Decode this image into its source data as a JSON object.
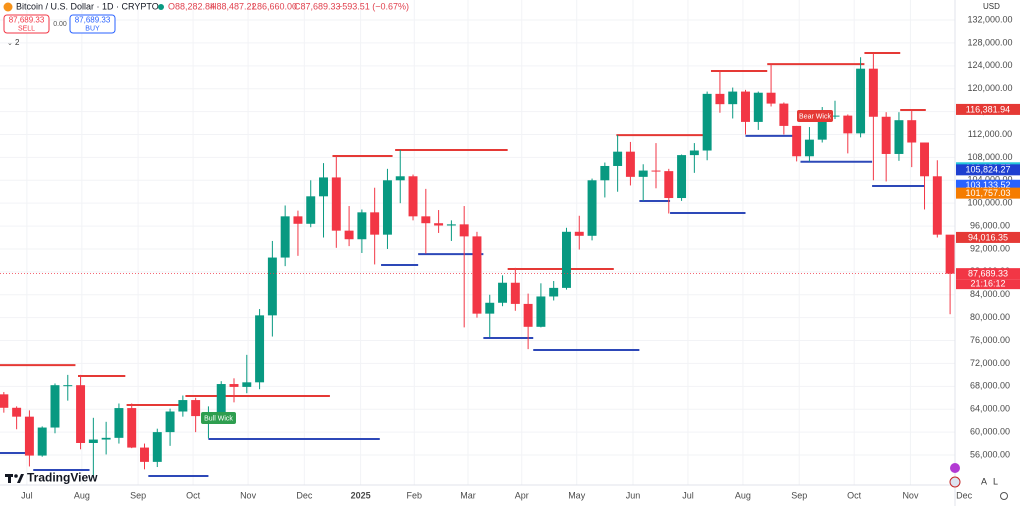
{
  "header": {
    "symbol": "Bitcoin / U.S. Dollar · 1D · CRYPTO",
    "open": "O88,282.84",
    "high": "H88,487.22",
    "low": "L86,660.00",
    "close": "C87,689.33",
    "change": "−593.51 (−0.67%)",
    "indicators": "2"
  },
  "order_panel": {
    "sell_price": "87,689.33",
    "sell": "SELL",
    "spread": "0.00",
    "buy_price": "87,689.33",
    "buy": "BUY"
  },
  "currency": "USD",
  "brand": "TradingView",
  "scale_buttons": {
    "auto": "A",
    "log": "L"
  },
  "annotations": {
    "bear": "Bear Wick",
    "bull": "Bull Wick"
  },
  "countdown": "21:16:12",
  "chart_data": {
    "type": "candlestick",
    "up_color": "#089981",
    "down_color": "#f23645",
    "open": [
      66600,
      64250,
      62700,
      55900,
      60800,
      68200,
      68200,
      58100,
      58700,
      59000,
      64200,
      57300,
      54800,
      60000,
      63600,
      65600,
      62800,
      62900,
      68400,
      67900,
      68700,
      80400,
      90500,
      97700,
      96400,
      101200,
      104500,
      95200,
      93700,
      98400,
      94500,
      104000,
      104700,
      97700,
      96500,
      96100,
      96300,
      94200,
      80700,
      82600,
      86100,
      82400,
      78400,
      83700,
      85200,
      95000,
      94300,
      104000,
      106500,
      109000,
      104600,
      105700,
      105600,
      100900,
      108400,
      109200,
      119100,
      117300,
      119500,
      114200,
      119300,
      117400,
      113500,
      108200,
      111100,
      115300,
      115300,
      112200,
      123500,
      115100,
      108600,
      114500,
      110600,
      104700,
      94500
    ],
    "high": [
      67000,
      64500,
      63800,
      61000,
      68500,
      70000,
      70000,
      62500,
      61800,
      65000,
      65000,
      58000,
      60600,
      64100,
      66400,
      66000,
      64500,
      68900,
      69400,
      73500,
      81500,
      93400,
      99600,
      98700,
      104000,
      107000,
      108300,
      99500,
      98900,
      102700,
      106000,
      109300,
      105000,
      102500,
      98800,
      97000,
      99500,
      95000,
      84000,
      87400,
      88700,
      84200,
      86000,
      86400,
      95700,
      97800,
      104300,
      107100,
      111900,
      110700,
      106800,
      110500,
      106000,
      108500,
      110500,
      119500,
      123200,
      120200,
      119800,
      119500,
      124400,
      117600,
      113500,
      113300,
      116800,
      117900,
      115500,
      125500,
      126200,
      115900,
      115900,
      116400,
      110600,
      107500,
      94000
    ],
    "low": [
      63400,
      60500,
      54000,
      55700,
      59800,
      65500,
      57000,
      52000,
      56100,
      58000,
      57200,
      53500,
      53900,
      57600,
      62700,
      60000,
      58900,
      62000,
      65200,
      66800,
      67500,
      76700,
      89000,
      90800,
      95800,
      94000,
      92200,
      92500,
      91300,
      89300,
      92000,
      100000,
      97000,
      91200,
      94800,
      93400,
      78300,
      80000,
      76600,
      82000,
      81200,
      74500,
      78300,
      83000,
      84900,
      91900,
      93500,
      101000,
      102000,
      103100,
      100400,
      102600,
      98200,
      100400,
      105300,
      107500,
      115800,
      114800,
      112000,
      112800,
      116900,
      112000,
      107300,
      107300,
      110600,
      114700,
      108700,
      111500,
      104000,
      103800,
      107400,
      106300,
      98900,
      94000,
      80600
    ],
    "close": [
      64250,
      62700,
      55900,
      60800,
      68200,
      68200,
      58100,
      58700,
      59000,
      64200,
      57300,
      54800,
      60000,
      63600,
      65600,
      62800,
      62900,
      68400,
      67900,
      68700,
      80400,
      90500,
      97700,
      96400,
      101200,
      104500,
      95200,
      93700,
      98400,
      94500,
      104000,
      104700,
      97700,
      96500,
      96100,
      96300,
      94200,
      80700,
      82600,
      86100,
      82400,
      78400,
      83700,
      85200,
      95000,
      94300,
      104000,
      106500,
      109000,
      104600,
      105700,
      105600,
      100900,
      108400,
      109200,
      119100,
      117300,
      119500,
      114200,
      119300,
      117400,
      113500,
      108200,
      111100,
      115300,
      115300,
      112200,
      123500,
      115100,
      108600,
      114500,
      110600,
      104700,
      94500,
      87689.33
    ],
    "xlim": [
      -0.3,
      75.4
    ],
    "xticks": [
      {
        "value": 1.8,
        "label": "Jul"
      },
      {
        "value": 6.1,
        "label": "Aug"
      },
      {
        "value": 10.5,
        "label": "Sep"
      },
      {
        "value": 14.8,
        "label": "Oct"
      },
      {
        "value": 19.1,
        "label": "Nov"
      },
      {
        "value": 23.5,
        "label": "Dec"
      },
      {
        "value": 27.9,
        "label": "2025"
      },
      {
        "value": 32.1,
        "label": "Feb"
      },
      {
        "value": 36.3,
        "label": "Mar"
      },
      {
        "value": 40.5,
        "label": "Apr"
      },
      {
        "value": 44.8,
        "label": "May"
      },
      {
        "value": 49.2,
        "label": "Jun"
      },
      {
        "value": 53.5,
        "label": "Jul"
      },
      {
        "value": 57.8,
        "label": "Aug"
      },
      {
        "value": 62.2,
        "label": "Sep"
      },
      {
        "value": 66.5,
        "label": "Oct"
      },
      {
        "value": 70.9,
        "label": "Nov"
      },
      {
        "value": 75.1,
        "label": "Dec"
      }
    ],
    "ylim": [
      50760,
      135500
    ],
    "yticks": [
      {
        "value": 56000,
        "label": "56,000.00"
      },
      {
        "value": 60000,
        "label": "60,000.00"
      },
      {
        "value": 64000,
        "label": "64,000.00"
      },
      {
        "value": 68000,
        "label": "68,000.00"
      },
      {
        "value": 72000,
        "label": "72,000.00"
      },
      {
        "value": 76000,
        "label": "76,000.00"
      },
      {
        "value": 80000,
        "label": "80,000.00"
      },
      {
        "value": 84000,
        "label": "84,000.00"
      },
      {
        "value": 88000,
        "label": "88,000.00"
      },
      {
        "value": 92000,
        "label": "92,000.00"
      },
      {
        "value": 96000,
        "label": "96,000.00"
      },
      {
        "value": 100000,
        "label": "100,000.00"
      },
      {
        "value": 104000,
        "label": "104,000.00"
      },
      {
        "value": 108000,
        "label": "108,000.00"
      },
      {
        "value": 112000,
        "label": "112,000.00"
      },
      {
        "value": 116000,
        "label": "116,000.00"
      },
      {
        "value": 120000,
        "label": "120,000.00"
      },
      {
        "value": 124000,
        "label": "124,000.00"
      },
      {
        "value": 128000,
        "label": "128,000.00"
      },
      {
        "value": 132000,
        "label": "132,000.00"
      }
    ],
    "grid": true,
    "levels": [
      {
        "x": [
          -0.3,
          5.6
        ],
        "price": 71700,
        "color": "#e53935"
      },
      {
        "x": [
          5.8,
          9.5
        ],
        "price": 69800,
        "color": "#e53935"
      },
      {
        "x": [
          9.6,
          14.2
        ],
        "price": 64740,
        "color": "#e53935"
      },
      {
        "x": [
          14.2,
          25.5
        ],
        "price": 66300,
        "color": "#e53935"
      },
      {
        "x": [
          25.7,
          30.4
        ],
        "price": 108240,
        "color": "#e53935"
      },
      {
        "x": [
          30.6,
          39.4
        ],
        "price": 109290,
        "color": "#e53935"
      },
      {
        "x": [
          39.4,
          47.7
        ],
        "price": 88500,
        "color": "#e53935"
      },
      {
        "x": [
          47.9,
          55.1
        ],
        "price": 111900,
        "color": "#e53935"
      },
      {
        "x": [
          55.3,
          59.7
        ],
        "price": 123090,
        "color": "#e53935"
      },
      {
        "x": [
          59.7,
          67.3
        ],
        "price": 124300,
        "color": "#e53935"
      },
      {
        "x": [
          67.3,
          70.1
        ],
        "price": 126230,
        "color": "#e53935"
      },
      {
        "x": [
          70.1,
          72.1
        ],
        "price": 116270,
        "color": "#e53935"
      },
      {
        "x": [
          -0.3,
          2.3
        ],
        "price": 56350,
        "color": "#2d48b8"
      },
      {
        "x": [
          2.3,
          6.7
        ],
        "price": 53380,
        "color": "#2d48b8"
      },
      {
        "x": [
          11.3,
          16.0
        ],
        "price": 52330,
        "color": "#2d48b8"
      },
      {
        "x": [
          16.0,
          29.4
        ],
        "price": 58800,
        "color": "#2d48b8"
      },
      {
        "x": [
          29.5,
          32.4
        ],
        "price": 89200,
        "color": "#2d48b8"
      },
      {
        "x": [
          32.4,
          37.5
        ],
        "price": 91100,
        "color": "#2d48b8"
      },
      {
        "x": [
          37.5,
          41.4
        ],
        "price": 76450,
        "color": "#2d48b8"
      },
      {
        "x": [
          41.4,
          49.7
        ],
        "price": 74350,
        "color": "#2d48b8"
      },
      {
        "x": [
          49.7,
          52.1
        ],
        "price": 100380,
        "color": "#2d48b8"
      },
      {
        "x": [
          52.1,
          58.0
        ],
        "price": 98280,
        "color": "#2d48b8"
      },
      {
        "x": [
          58.0,
          62.3
        ],
        "price": 111760,
        "color": "#2d48b8"
      },
      {
        "x": [
          62.3,
          67.9
        ],
        "price": 107230,
        "color": "#2d48b8"
      },
      {
        "x": [
          67.9,
          72.0
        ],
        "price": 103000,
        "color": "#2d48b8"
      }
    ],
    "price_labels": [
      {
        "value": 116381.94,
        "label": "116,381.94",
        "color": "#e53935"
      },
      {
        "value": 106186.77,
        "label": "106,186.77",
        "color": "#26c6da"
      },
      {
        "value": 105824.27,
        "label": "105,824.27",
        "color": "#1e3fd0"
      },
      {
        "value": 103133.52,
        "label": "103,133.52",
        "color": "#2962ff"
      },
      {
        "value": 101757.03,
        "label": "101,757.03",
        "color": "#f57c00"
      },
      {
        "value": 94016.35,
        "label": "94,016.35",
        "color": "#e53935"
      },
      {
        "value": 87689.33,
        "label": "87,689.33",
        "color": "#f23645"
      }
    ]
  }
}
